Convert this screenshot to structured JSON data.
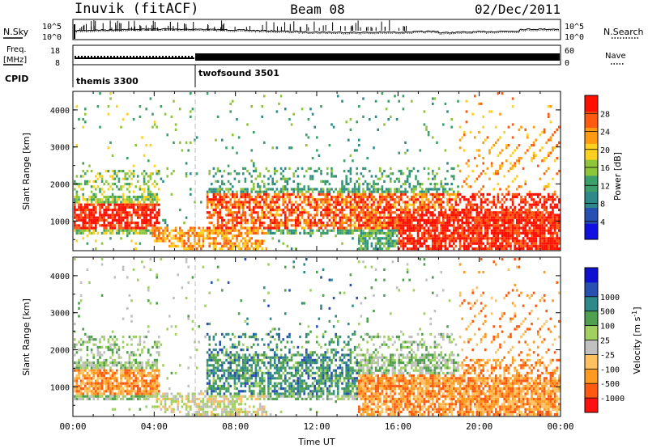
{
  "header": {
    "station": "Inuvik (fitACF)",
    "beam": "Beam 08",
    "date": "02/Dec/2011"
  },
  "panels": {
    "nsky_label": "N.Sky",
    "nsearch_label": "N.Search",
    "freq_label": "Freq.",
    "freq_unit": "[MHz]",
    "nave_label": "Nave",
    "cpid_label": "CPID",
    "nsky_ticks": [
      "10^5",
      "10^0"
    ],
    "nsearch_ticks": [
      "10^5",
      "10^0"
    ],
    "freq_ticks": [
      "18",
      "8"
    ],
    "nave_ticks": [
      "60",
      "0"
    ],
    "cpid_segments": [
      {
        "name": "themis 3300",
        "start": 0,
        "end": 6
      },
      {
        "name": "twofsound 3501",
        "start": 6,
        "end": 24
      }
    ]
  },
  "colors": {
    "power": [
      "#1010e0",
      "#2850b0",
      "#2e8a8a",
      "#3da06a",
      "#8ec63a",
      "#ffd020",
      "#ff9a10",
      "#ff5a10",
      "#ff1000"
    ],
    "velocity": [
      "#ff1010",
      "#ff5a10",
      "#ff9a20",
      "#ffc060",
      "#c0c0c0",
      "#a0d060",
      "#50a050",
      "#2e8a8a",
      "#2850b0",
      "#1010d0"
    ]
  },
  "chart_data": [
    {
      "type": "heatmap",
      "name": "power",
      "xlabel": "",
      "ylabel": "Slant Range [km]",
      "xlim": [
        0,
        24
      ],
      "ylim": [
        200,
        4500
      ],
      "yticks": [
        1000,
        2000,
        3000,
        4000
      ],
      "colorbar_label": "Power [dB]",
      "colorbar_ticks": [
        "4",
        "8",
        "12",
        "16",
        "20",
        "24",
        "28"
      ],
      "colorbar_range": [
        0,
        32
      ]
    },
    {
      "type": "heatmap",
      "name": "velocity",
      "xlabel": "Time UT",
      "ylabel": "Slant Range [km]",
      "xlim": [
        0,
        24
      ],
      "ylim": [
        200,
        4500
      ],
      "xticks": [
        "00:00",
        "04:00",
        "08:00",
        "12:00",
        "16:00",
        "20:00",
        "00:00"
      ],
      "yticks": [
        1000,
        2000,
        3000,
        4000
      ],
      "colorbar_label": "Velocity [m s",
      "colorbar_unit_sup": "-1",
      "colorbar_unit_close": "]",
      "colorbar_ticks": [
        "-1000",
        "-500",
        "-100",
        "-25",
        "25",
        "100",
        "500",
        "1000"
      ]
    }
  ]
}
